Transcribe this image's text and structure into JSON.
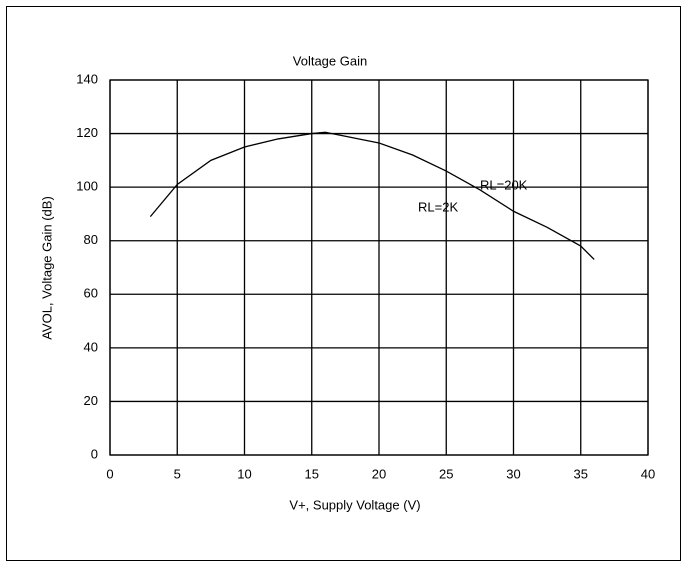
{
  "chart_data": {
    "type": "line",
    "title": "Voltage Gain",
    "x_label": "V+, Supply Voltage (V)",
    "y_label": "AVOL, Voltage Gain (dB)",
    "annotations": [
      "RL=20K",
      "RL=2K"
    ],
    "x": [
      3,
      5,
      7.5,
      10,
      12.5,
      15,
      16,
      17.5,
      20,
      22.5,
      25,
      27.5,
      30,
      32.5,
      35,
      36
    ],
    "series": [
      {
        "name": "RL=2K",
        "color": "#000000",
        "values": [
          89,
          101,
          110,
          115,
          118,
          120,
          120.5,
          119,
          116.5,
          112,
          106,
          99,
          91,
          85,
          78,
          73
        ]
      }
    ],
    "xlim": [
      0,
      40
    ],
    "xticks": [
      0,
      5,
      10,
      15,
      20,
      25,
      30,
      35,
      40
    ],
    "ylim": [
      0,
      140
    ],
    "yticks": [
      0,
      20,
      40,
      60,
      80,
      100,
      120,
      140
    ],
    "grid": true
  }
}
